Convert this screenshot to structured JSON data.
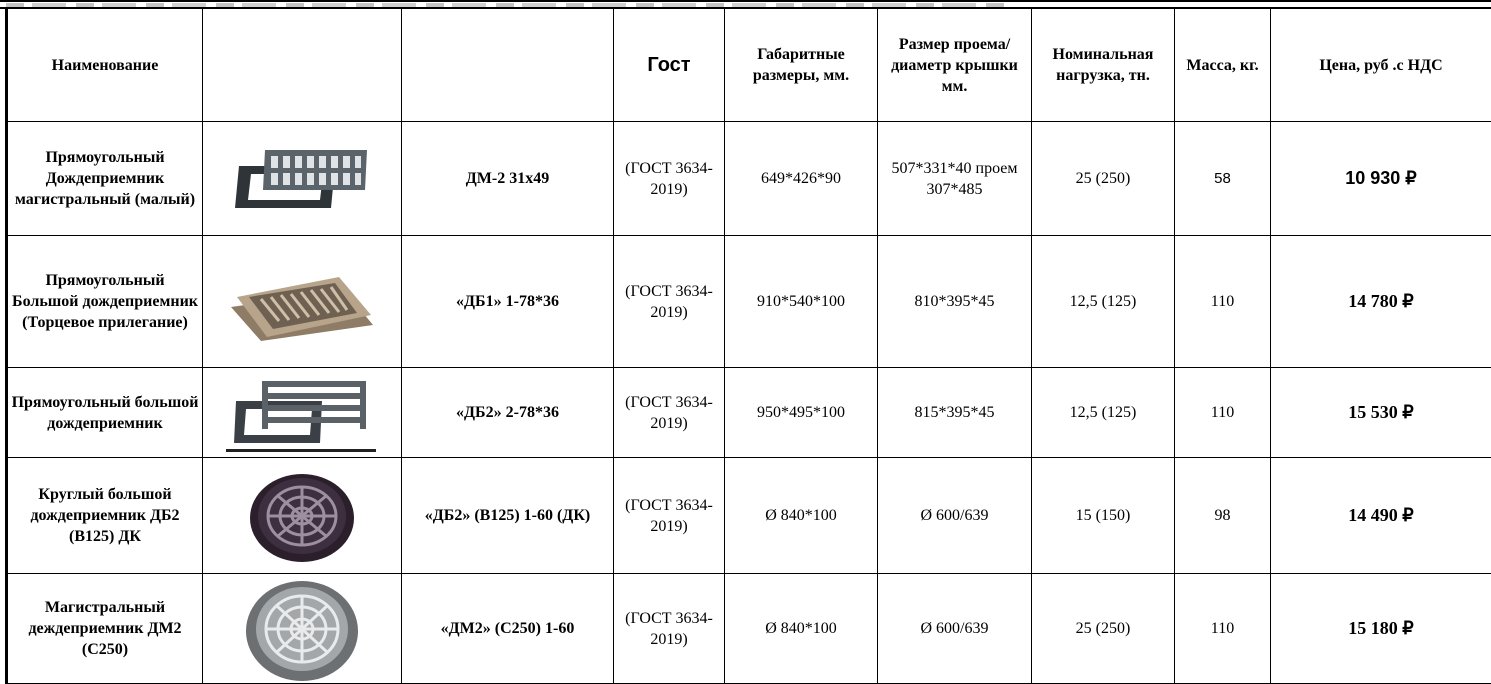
{
  "table": {
    "headers": {
      "name": "Наименование",
      "image": "",
      "code": "",
      "gost": "Гост",
      "dimensions": "Габаритные размеры, мм.",
      "opening": "Размер проема/диаметр крышки мм.",
      "load": "Номинальная нагрузка, тн.",
      "mass": "Масса, кг.",
      "price": "Цена, руб .с НДС"
    },
    "rows": [
      {
        "name": "Прямоугольный Дождеприемник магистральный (малый)",
        "image_icon": "rectangular-grate-small-icon",
        "code": "ДМ-2 31х49",
        "gost": "(ГОСТ 3634-2019)",
        "dimensions": "649*426*90",
        "opening": "507*331*40 проем 307*485",
        "load": "25 (250)",
        "mass": "58",
        "price": "10 930 ₽"
      },
      {
        "name": "Прямоугольный Большой дождеприемник (Торцевое прилегание)",
        "image_icon": "rectangular-grate-large-icon",
        "code": "«ДБ1» 1-78*36",
        "gost": "(ГОСТ 3634-2019)",
        "dimensions": "910*540*100",
        "opening": "810*395*45",
        "load": "12,5 (125)",
        "mass": "110",
        "price": "14 780 ₽"
      },
      {
        "name": "Прямоугольный большой дождеприемник",
        "image_icon": "rectangular-grate-bars-icon",
        "code": "«ДБ2» 2-78*36",
        "gost": "(ГОСТ 3634-2019)",
        "dimensions": "950*495*100",
        "opening": "815*395*45",
        "load": "12,5 (125)",
        "mass": "110",
        "price": "15 530 ₽"
      },
      {
        "name": "Круглый большой дождеприемник ДБ2 (В125) ДК",
        "image_icon": "round-grate-dark-icon",
        "code": "«ДБ2» (В125) 1-60 (ДК)",
        "gost": "(ГОСТ 3634-2019)",
        "dimensions": "Ø 840*100",
        "opening": "Ø 600/639",
        "load": "15 (150)",
        "mass": "98",
        "price": "14 490 ₽"
      },
      {
        "name": "Магистральный деждеприемник ДМ2 (С250)",
        "image_icon": "round-grate-gray-icon",
        "code": "«ДМ2» (С250) 1-60",
        "gost": "(ГОСТ 3634-2019)",
        "dimensions": "Ø 840*100",
        "opening": "Ø 600/639",
        "load": "25 (250)",
        "mass": "110",
        "price": "15 180 ₽"
      }
    ]
  }
}
